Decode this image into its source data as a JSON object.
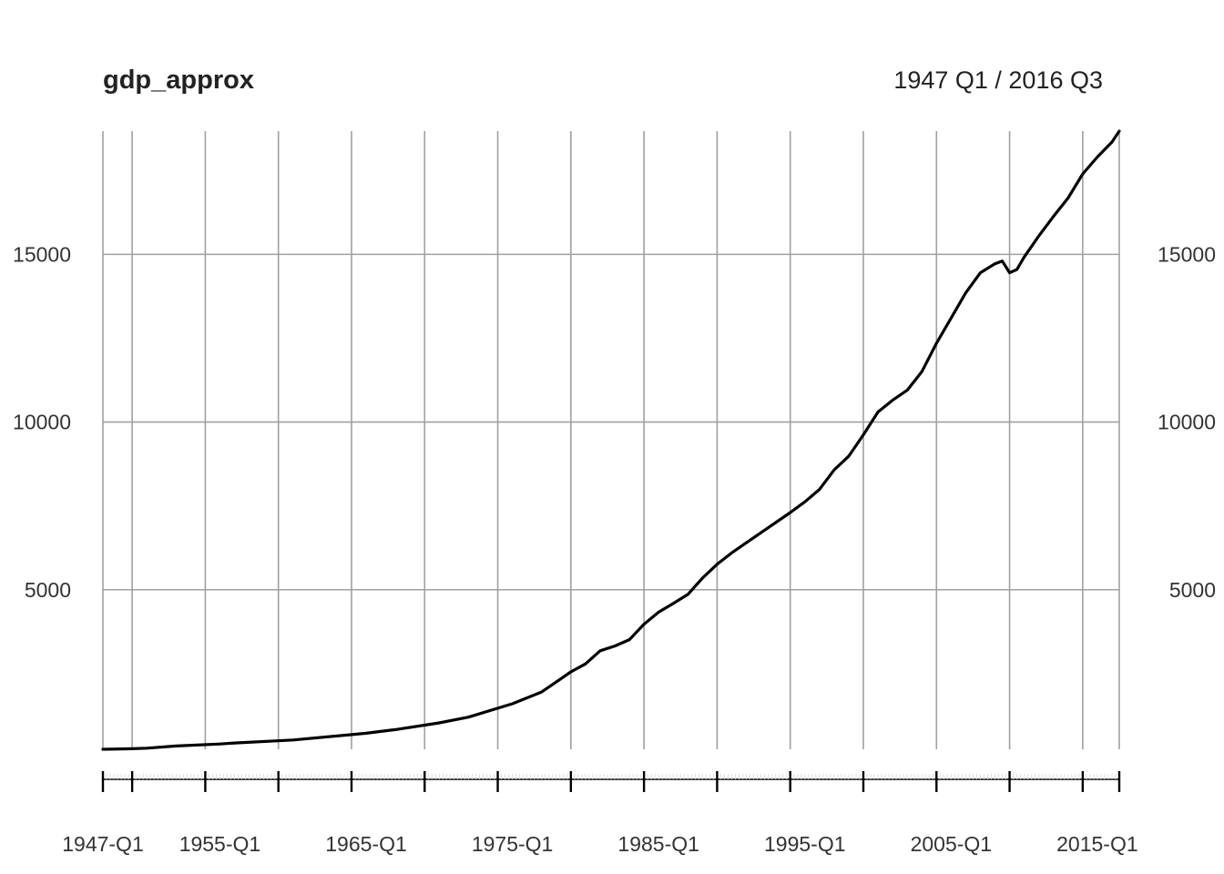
{
  "chart_data": {
    "type": "line",
    "title": "gdp_approx",
    "subtitle": "1947 Q1 / 2016 Q3",
    "xlabel": "",
    "ylabel": "",
    "x_range": [
      "1947-Q1",
      "2016-Q3"
    ],
    "x_tick_labels": [
      "1947-Q1",
      "1955-Q1",
      "1965-Q1",
      "1975-Q1",
      "1985-Q1",
      "1995-Q1",
      "2005-Q1",
      "2015-Q1"
    ],
    "y_tick_values": [
      5000,
      10000,
      15000
    ],
    "y_tick_labels": [
      "5000",
      "10000",
      "15000"
    ],
    "ylim": [
      243,
      18675
    ],
    "grid": true,
    "y_axis_labels_both_sides": true,
    "line_color": "#000000",
    "grid_color": "#a0a0a0",
    "series": [
      {
        "x": [
          "1947-Q1",
          "1949-Q1",
          "1950-Q1",
          "1952-Q1",
          "1955-Q1",
          "1956-Q1",
          "1960-Q1",
          "1965-Q1",
          "1967-Q1",
          "1970-Q1",
          "1972-Q1",
          "1975-Q1",
          "1977-Q1",
          "1978-Q1",
          "1979-Q1",
          "1980-Q1",
          "1981-Q1",
          "1982-Q1",
          "1983-Q1",
          "1984-Q1",
          "1985-Q1",
          "1986-Q1",
          "1987-Q1",
          "1988-Q1",
          "1989-Q1",
          "1990-Q1",
          "1992-Q1",
          "1994-Q1",
          "1995-Q1",
          "1996-Q1",
          "1997-Q1",
          "1998-Q1",
          "1999-Q1",
          "2000-Q1",
          "2001-Q1",
          "2002-Q1",
          "2003-Q1",
          "2004-Q1",
          "2005-Q1",
          "2006-Q1",
          "2007-Q1",
          "2008-Q1",
          "2008-Q3",
          "2009-Q1",
          "2009-Q3",
          "2010-Q1",
          "2011-Q1",
          "2012-Q1",
          "2013-Q1",
          "2014-Q1",
          "2015-Q1",
          "2016-Q1",
          "2016-Q3"
        ],
        "values": [
          243,
          260,
          275,
          340,
          400,
          430,
          520,
          720,
          830,
          1030,
          1200,
          1600,
          1950,
          2250,
          2550,
          2790,
          3180,
          3320,
          3510,
          3970,
          4330,
          4590,
          4860,
          5350,
          5760,
          6100,
          6700,
          7300,
          7620,
          7990,
          8570,
          8980,
          9620,
          10300,
          10650,
          10950,
          11500,
          12350,
          13100,
          13850,
          14450,
          14720,
          14800,
          14450,
          14550,
          14920,
          15550,
          16130,
          16680,
          17400,
          17900,
          18350,
          18675
        ]
      }
    ]
  }
}
